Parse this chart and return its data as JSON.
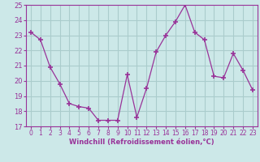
{
  "x": [
    0,
    1,
    2,
    3,
    4,
    5,
    6,
    7,
    8,
    9,
    10,
    11,
    12,
    13,
    14,
    15,
    16,
    17,
    18,
    19,
    20,
    21,
    22,
    23
  ],
  "y": [
    23.2,
    22.7,
    20.9,
    19.8,
    18.5,
    18.3,
    18.2,
    17.4,
    17.4,
    17.4,
    20.4,
    17.6,
    19.5,
    21.9,
    23.0,
    23.9,
    25.0,
    23.2,
    22.7,
    20.3,
    20.2,
    21.8,
    20.7,
    19.4
  ],
  "xlabel": "Windchill (Refroidissement éolien,°C)",
  "ylim": [
    17,
    25
  ],
  "xlim": [
    -0.5,
    23.5
  ],
  "yticks": [
    17,
    18,
    19,
    20,
    21,
    22,
    23,
    24,
    25
  ],
  "xticks": [
    0,
    1,
    2,
    3,
    4,
    5,
    6,
    7,
    8,
    9,
    10,
    11,
    12,
    13,
    14,
    15,
    16,
    17,
    18,
    19,
    20,
    21,
    22,
    23
  ],
  "line_color": "#993399",
  "marker": "+",
  "bg_color": "#cce8e8",
  "grid_color": "#aacccc",
  "tick_color": "#993399",
  "label_color": "#993399",
  "tick_fontsize": 5.5,
  "xlabel_fontsize": 6.0
}
